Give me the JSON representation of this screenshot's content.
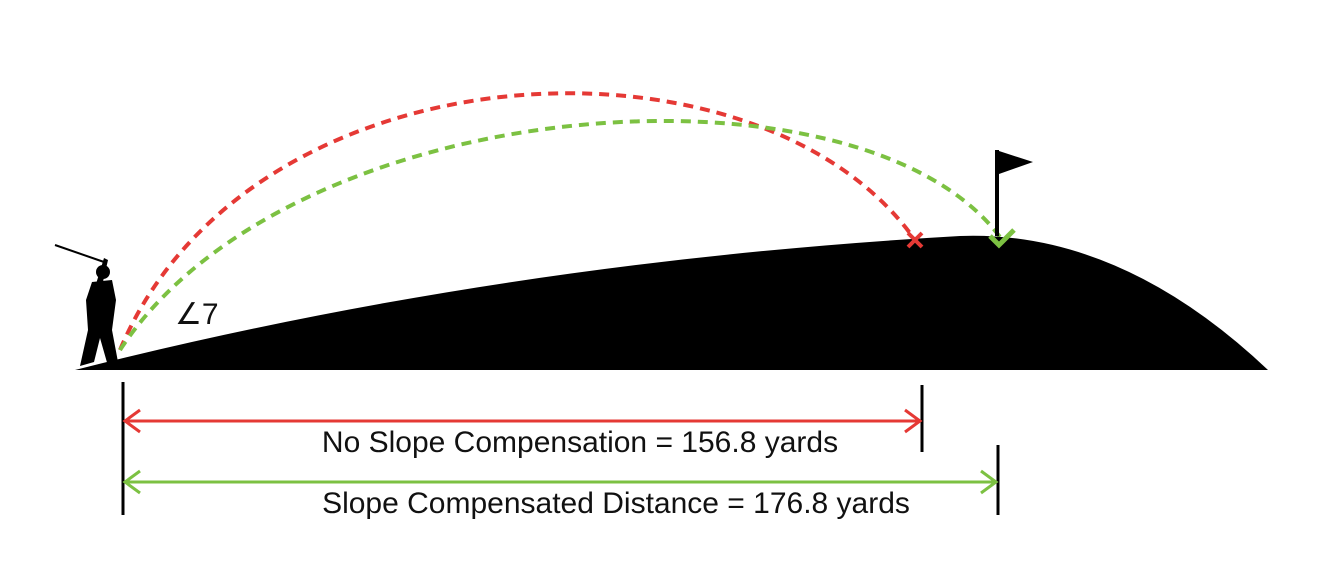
{
  "angle_label": "∠7",
  "measurements": [
    {
      "label": "No Slope Compensation = 156.8 yards"
    },
    {
      "label": "Slope Compensated Distance = 176.8 yards"
    }
  ]
}
